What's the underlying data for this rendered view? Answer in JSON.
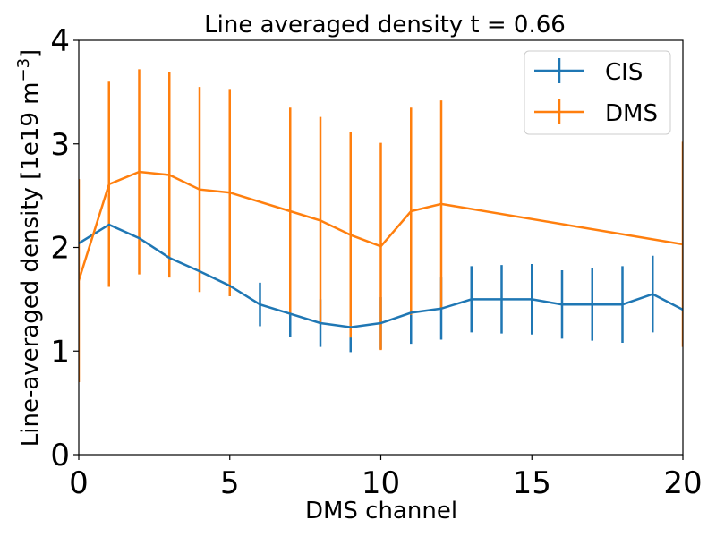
{
  "chart_data": {
    "type": "line",
    "title": "Line averaged density t = 0.66",
    "xlabel": "DMS channel",
    "ylabel": {
      "text": "Line-averaged density [1e19 m",
      "superscript": "−3",
      "suffix": "]"
    },
    "xlim": [
      0,
      20
    ],
    "ylim": [
      0,
      4
    ],
    "xticks": [
      "0",
      "5",
      "10",
      "15",
      "20"
    ],
    "yticks": [
      "0",
      "1",
      "2",
      "3",
      "4"
    ],
    "legend_position": "top-right",
    "series": [
      {
        "name": "CIS",
        "color": "#1f77b4",
        "x": [
          0,
          1,
          2,
          3,
          4,
          5,
          6,
          7,
          8,
          9,
          10,
          11,
          12,
          13,
          14,
          15,
          16,
          17,
          18,
          19,
          20
        ],
        "y": [
          2.04,
          2.22,
          2.09,
          1.9,
          1.77,
          1.63,
          1.45,
          1.36,
          1.27,
          1.23,
          1.27,
          1.37,
          1.41,
          1.5,
          1.5,
          1.5,
          1.45,
          1.45,
          1.45,
          1.55,
          1.4
        ],
        "err": [
          0.0,
          0.0,
          0.0,
          0.0,
          0.0,
          0.1,
          0.21,
          0.22,
          0.23,
          0.24,
          0.25,
          0.3,
          0.3,
          0.32,
          0.33,
          0.34,
          0.33,
          0.35,
          0.37,
          0.37,
          0.0
        ]
      },
      {
        "name": "DMS",
        "color": "#ff7f0e",
        "x": [
          0,
          1,
          2,
          3,
          4,
          5,
          7,
          8,
          9,
          10,
          11,
          12,
          20
        ],
        "y": [
          1.68,
          2.61,
          2.73,
          2.7,
          2.56,
          2.53,
          2.35,
          2.26,
          2.12,
          2.01,
          2.35,
          2.42,
          2.03
        ],
        "err": [
          0.98,
          0.99,
          0.99,
          0.99,
          0.99,
          1.0,
          1.0,
          1.0,
          0.99,
          1.0,
          1.0,
          1.0,
          0.99
        ]
      }
    ]
  }
}
